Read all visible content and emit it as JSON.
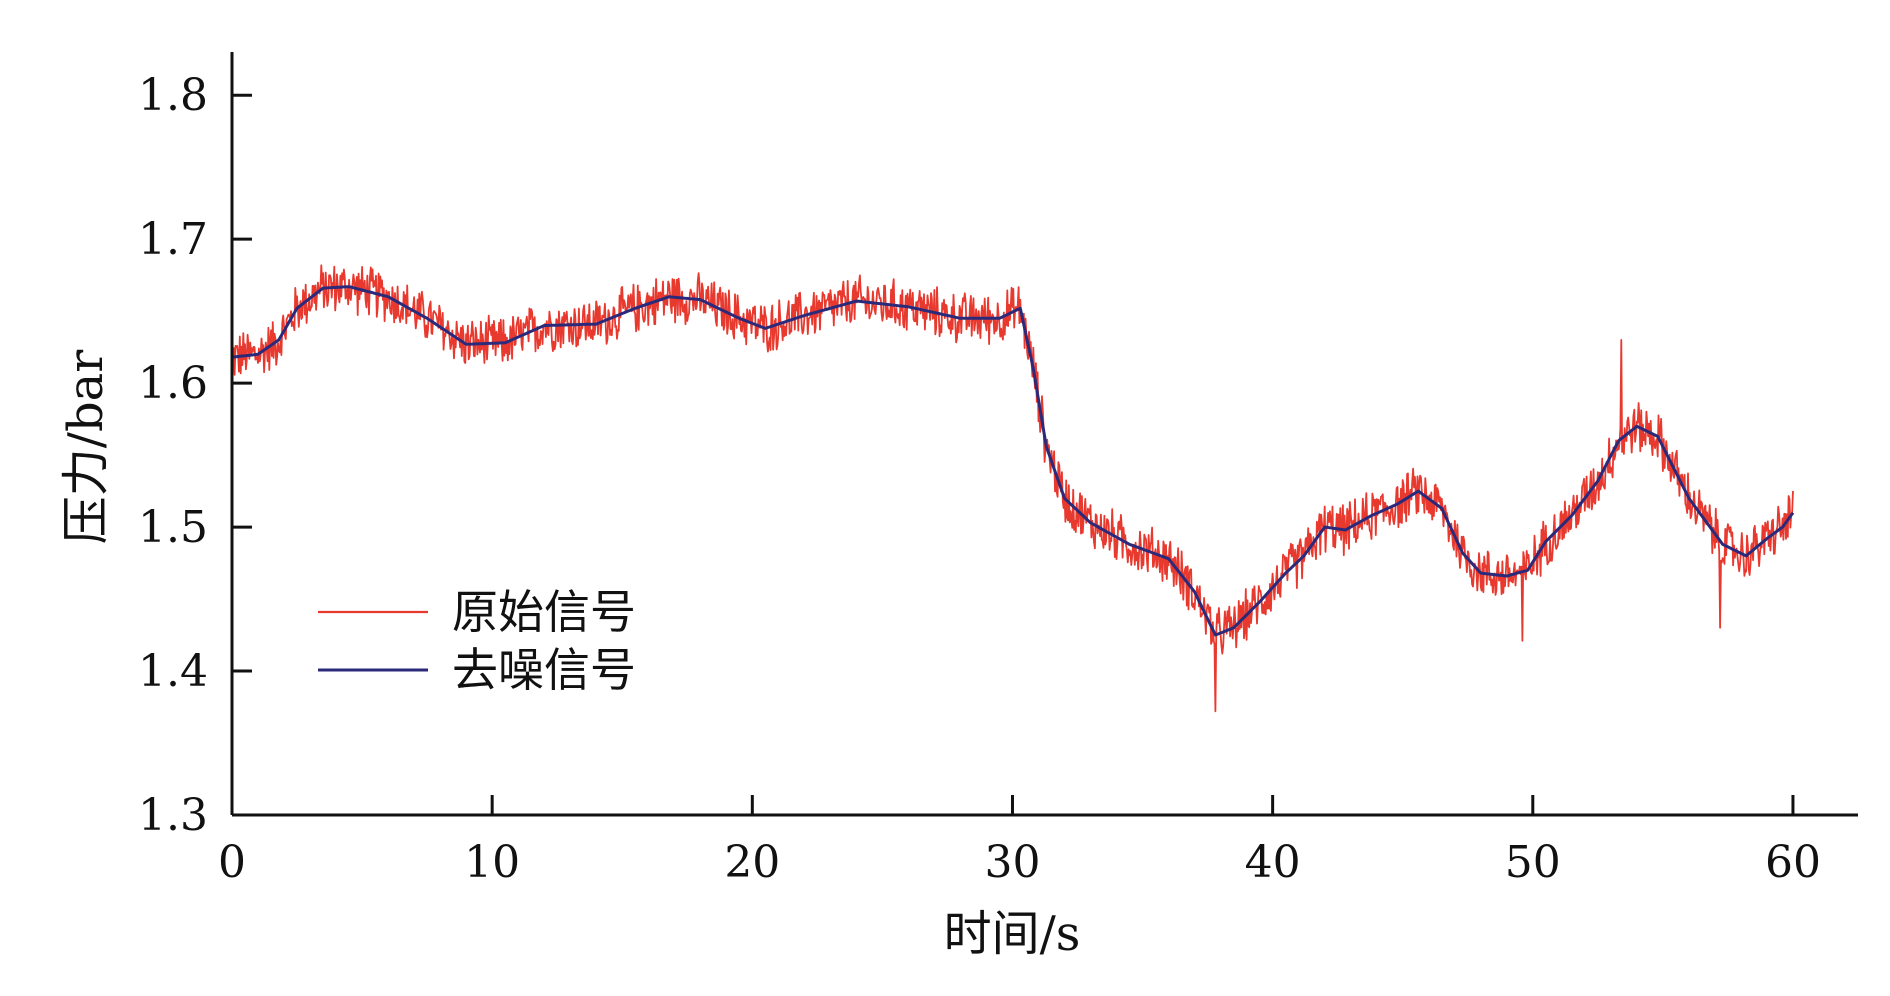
{
  "chart_data": {
    "type": "line",
    "title": "",
    "xlabel": "时间/s",
    "ylabel": "压力/bar",
    "xlim": [
      0,
      62.5
    ],
    "ylim": [
      1.3,
      1.83
    ],
    "xticks": [
      0,
      10,
      20,
      30,
      40,
      50,
      60
    ],
    "yticks": [
      1.3,
      1.4,
      1.5,
      1.6,
      1.7,
      1.8
    ],
    "xtick_labels": [
      "0",
      "10",
      "20",
      "30",
      "40",
      "50",
      "60"
    ],
    "ytick_labels": [
      "1.3",
      "1.4",
      "1.5",
      "1.6",
      "1.7",
      "1.8"
    ],
    "grid": false,
    "legend_position": "center-left",
    "colors": {
      "raw": "#e8392f",
      "denoised": "#2b2a7a",
      "axis": "#111111"
    },
    "series": [
      {
        "name": "原始信号",
        "role": "raw",
        "color": "#e8392f",
        "noise_amplitude": 0.02,
        "x_range": [
          0,
          60
        ],
        "notable_points": [
          {
            "x": 37.8,
            "y": 1.372
          },
          {
            "x": 53.4,
            "y": 1.63
          },
          {
            "x": 49.6,
            "y": 1.421
          },
          {
            "x": 57.2,
            "y": 1.43
          }
        ]
      },
      {
        "name": "去噪信号",
        "role": "denoised",
        "color": "#2b2a7a",
        "x": [
          0,
          1,
          1.8,
          2.5,
          3.5,
          4.5,
          6,
          7.5,
          9,
          10.5,
          12,
          14,
          15.5,
          16.8,
          18,
          19.5,
          20.5,
          22,
          24,
          26,
          28,
          29.5,
          30.3,
          30.8,
          31.3,
          32,
          33,
          34.5,
          36,
          37,
          37.8,
          38.5,
          39.5,
          40.5,
          41.2,
          42,
          42.8,
          43.8,
          44.8,
          45.6,
          46.5,
          47.3,
          48,
          49,
          49.8,
          50.5,
          51.5,
          52.5,
          53.3,
          54,
          54.8,
          56,
          57.3,
          58.2,
          59,
          59.6,
          60
        ],
        "y": [
          1.618,
          1.62,
          1.63,
          1.652,
          1.666,
          1.667,
          1.66,
          1.645,
          1.627,
          1.628,
          1.64,
          1.641,
          1.652,
          1.66,
          1.658,
          1.645,
          1.638,
          1.647,
          1.657,
          1.653,
          1.645,
          1.645,
          1.652,
          1.61,
          1.556,
          1.52,
          1.503,
          1.488,
          1.478,
          1.455,
          1.425,
          1.43,
          1.448,
          1.468,
          1.48,
          1.5,
          1.498,
          1.508,
          1.516,
          1.525,
          1.513,
          1.482,
          1.468,
          1.466,
          1.47,
          1.49,
          1.508,
          1.532,
          1.56,
          1.57,
          1.563,
          1.52,
          1.488,
          1.48,
          1.492,
          1.5,
          1.51
        ]
      }
    ]
  }
}
